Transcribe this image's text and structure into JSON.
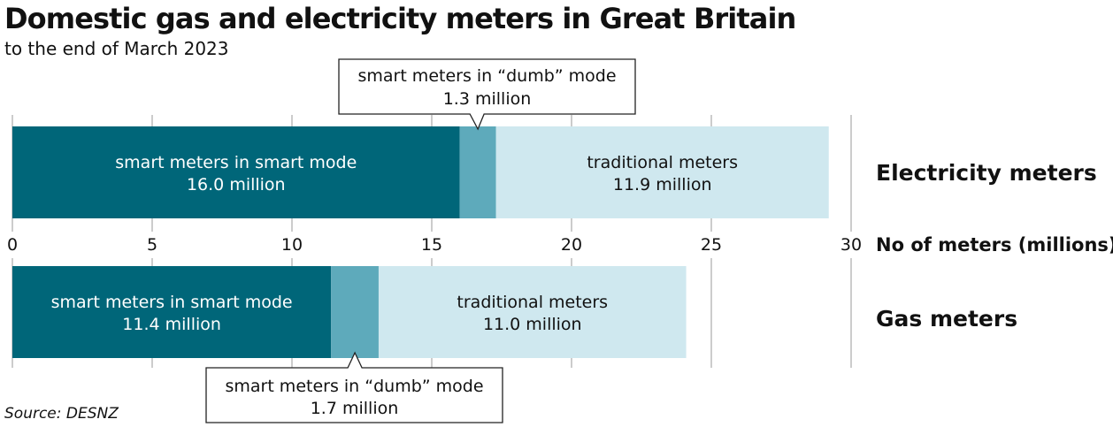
{
  "title": "Domestic gas and electricity meters in Great Britain",
  "subtitle": "to the end of March 2023",
  "source": "Source: DESNZ",
  "colors": {
    "smart_mode": "#006679",
    "dumb_mode": "#5eaabb",
    "traditional": "#cfe8ef",
    "grid": "#cccccc"
  },
  "chart_data": {
    "type": "bar",
    "orientation": "horizontal",
    "stacked": true,
    "xlabel": "No of meters (millions)",
    "xlim": [
      0,
      30
    ],
    "xticks": [
      0,
      5,
      10,
      15,
      20,
      25,
      30
    ],
    "grid": true,
    "categories": [
      "Electricity meters",
      "Gas meters"
    ],
    "series": [
      {
        "name": "smart meters in smart mode",
        "values": [
          16.0,
          11.4
        ],
        "labels": [
          "16.0 million",
          "11.4 million"
        ]
      },
      {
        "name": "smart meters in “dumb” mode",
        "values": [
          1.3,
          1.7
        ],
        "labels": [
          "1.3 million",
          "1.7 million"
        ]
      },
      {
        "name": "traditional meters",
        "values": [
          11.9,
          11.0
        ],
        "labels": [
          "11.9 million",
          "11.0 million"
        ]
      }
    ]
  }
}
